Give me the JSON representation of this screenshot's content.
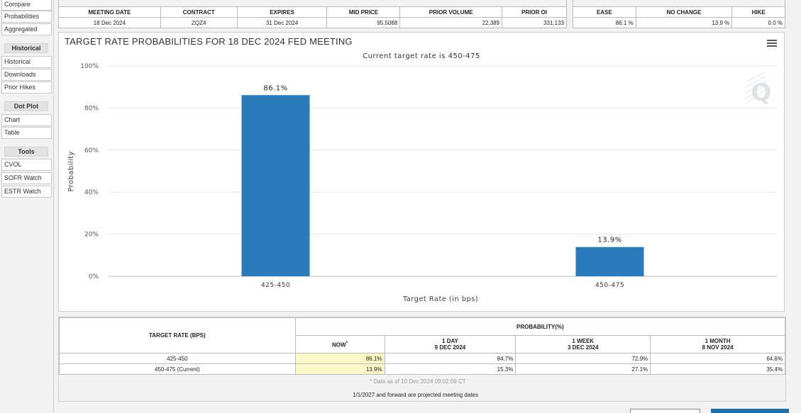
{
  "sidebar": {
    "compare": "Compare",
    "probabilities": "Probabilities",
    "aggregated": "Aggregated",
    "historical_head": "Historical",
    "historical": "Historical",
    "downloads": "Downloads",
    "prior_hikes": "Prior Hikes",
    "dotplot_head": "Dot Plot",
    "chart": "Chart",
    "table": "Table",
    "tools_head": "Tools",
    "cvol": "CVOL",
    "sofr_watch": "SOFR Watch",
    "estr_watch": "ESTR Watch"
  },
  "meeting": {
    "headers": [
      "MEETING DATE",
      "CONTRACT",
      "EXPIRES",
      "MID PRICE",
      "PRIOR VOLUME",
      "PRIOR OI"
    ],
    "values": [
      "18 Dec 2024",
      "ZQZ4",
      "31 Dec 2024",
      "95.5088",
      "22,389",
      "331,133"
    ]
  },
  "outlook": {
    "headers": [
      "EASE",
      "NO CHANGE",
      "HIKE"
    ],
    "values": [
      "86.1 %",
      "13.9 %",
      "0.0 %"
    ]
  },
  "chart_panel": {
    "title": "TARGET RATE PROBABILITIES FOR 18 DEC 2024 FED MEETING",
    "menu_icon": "hamburger-menu-icon",
    "watermark": "Q"
  },
  "chart_data": {
    "type": "bar",
    "title": "Current target rate is 450-475",
    "categories": [
      "425-450",
      "450-475"
    ],
    "values": [
      86.1,
      13.9
    ],
    "value_labels": [
      "86.1%",
      "13.9%"
    ],
    "xlabel": "Target Rate (in bps)",
    "ylabel": "Probability",
    "ylim": [
      0,
      100
    ],
    "yticks": [
      "0%",
      "20%",
      "40%",
      "60%",
      "80%",
      "100%"
    ],
    "color": "#2b7bba",
    "grid": true
  },
  "prob_table": {
    "rate_header": "TARGET RATE (BPS)",
    "prob_header": "PROBABILITY(%)",
    "now": "NOW",
    "now_mark": "*",
    "col1_l1": "1 DAY",
    "col1_l2": "9 DEC 2024",
    "col2_l1": "1 WEEK",
    "col2_l2": "3 DEC 2024",
    "col3_l1": "1 MONTH",
    "col3_l2": "8 NOV 2024",
    "rows": [
      {
        "rate": "425-450",
        "now": "86.1%",
        "day": "84.7%",
        "week": "72.9%",
        "month": "64.6%"
      },
      {
        "rate": "450-475 (Current)",
        "now": "13.9%",
        "day": "15.3%",
        "week": "27.1%",
        "month": "35.4%"
      }
    ],
    "data_note": "* Data as of 10 Dec 2024 09:02:09 CT",
    "projected_note": "1/1/2027 and forward are projected meeting dates"
  }
}
